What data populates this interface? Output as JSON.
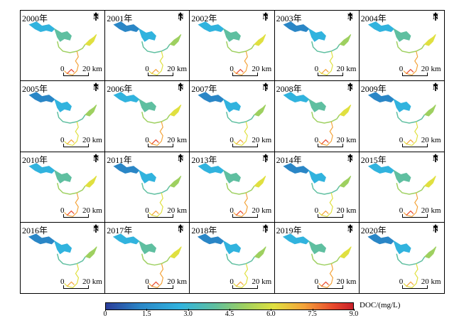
{
  "panels": [
    {
      "year": "2000年"
    },
    {
      "year": "2001年"
    },
    {
      "year": "2002年"
    },
    {
      "year": "2003年"
    },
    {
      "year": "2004年"
    },
    {
      "year": "2005年"
    },
    {
      "year": "2006年"
    },
    {
      "year": "2007年"
    },
    {
      "year": "2008年"
    },
    {
      "year": "2009年"
    },
    {
      "year": "2010年"
    },
    {
      "year": "2011年"
    },
    {
      "year": "2013年"
    },
    {
      "year": "2014年"
    },
    {
      "year": "2015年"
    },
    {
      "year": "2016年"
    },
    {
      "year": "2017年"
    },
    {
      "year": "2018年"
    },
    {
      "year": "2019年"
    },
    {
      "year": "2020年"
    }
  ],
  "north_label": "N",
  "scale": {
    "start": "0",
    "end": "20 km"
  },
  "legend": {
    "unit": "DOC/(mg/L)",
    "ticks": [
      "0",
      "1.5",
      "3.0",
      "4.5",
      "6.0",
      "7.5",
      "9.0"
    ],
    "colors": [
      "#2b3d9a",
      "#2a86c6",
      "#31b3de",
      "#5fbfa0",
      "#9ed060",
      "#e0e040",
      "#f4a43a",
      "#e8482c",
      "#c8202a"
    ]
  }
}
